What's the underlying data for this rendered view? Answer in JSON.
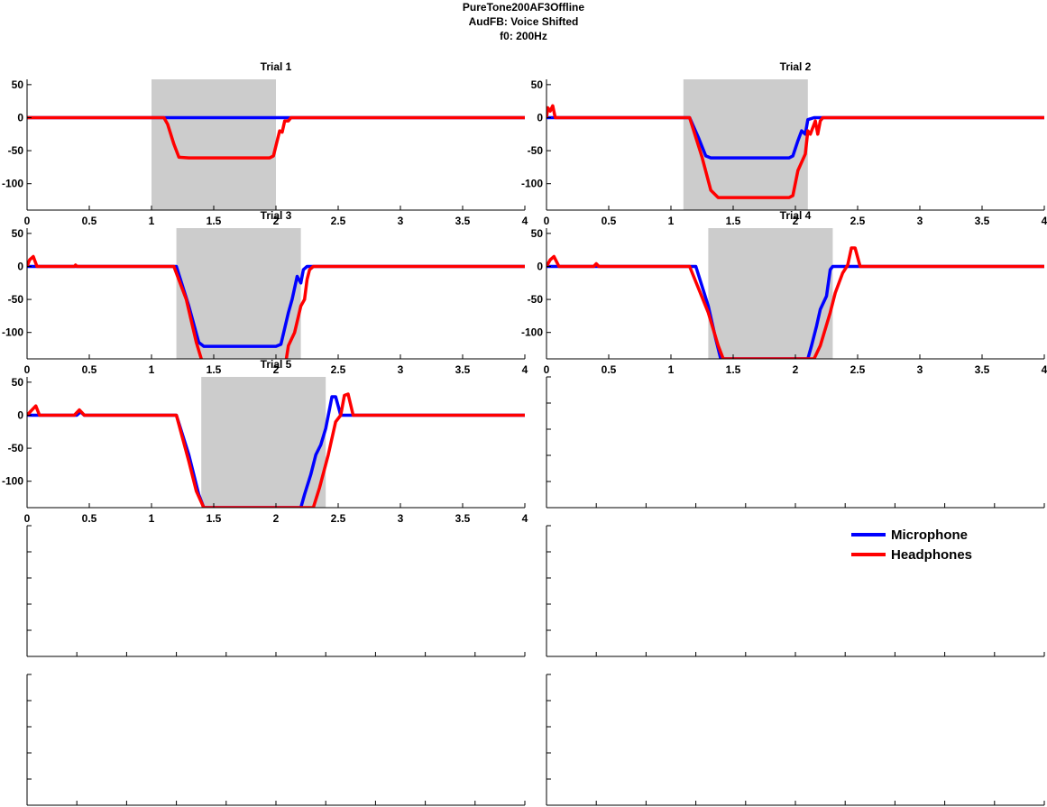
{
  "figure": {
    "title_lines": [
      "PureTone200AF3Offline",
      "AudFB: Voice Shifted",
      "f0: 200Hz"
    ]
  },
  "colors": {
    "microphone": "#0000ff",
    "headphones": "#ff0000",
    "shade": "#cccccc"
  },
  "legend": {
    "placement": "top-right of lower-right empty axes",
    "entries": [
      {
        "label": "Microphone",
        "color": "#0000ff"
      },
      {
        "label": "Headphones",
        "color": "#ff0000"
      }
    ]
  },
  "chart_data": [
    {
      "type": "line",
      "title": "Trial 1",
      "xlim": [
        0,
        4
      ],
      "ylim": [
        -140,
        58
      ],
      "xticks": [
        "0",
        "0.5",
        "1",
        "1.5",
        "2",
        "2.5",
        "3",
        "3.5",
        "4"
      ],
      "yticks": [
        "50",
        "0",
        "-50",
        "-100"
      ],
      "shade": [
        1.0,
        2.0
      ],
      "series": [
        {
          "name": "Microphone",
          "color": "#0000ff",
          "x": [
            0,
            1.0,
            1.1,
            2.0,
            2.1,
            4.0
          ],
          "y": [
            0,
            0,
            0,
            0,
            0,
            0
          ]
        },
        {
          "name": "Headphones",
          "color": "#ff0000",
          "x": [
            0,
            1.1,
            1.13,
            1.18,
            1.22,
            1.3,
            1.95,
            1.98,
            2.03,
            2.05,
            2.07,
            2.1,
            2.12,
            4.0
          ],
          "y": [
            0,
            0,
            -10,
            -40,
            -60,
            -61,
            -61,
            -58,
            -20,
            -22,
            -5,
            -5,
            0,
            0
          ]
        }
      ]
    },
    {
      "type": "line",
      "title": "Trial 2",
      "xlim": [
        0,
        4
      ],
      "ylim": [
        -140,
        58
      ],
      "xticks": [
        "0",
        "0.5",
        "1",
        "1.5",
        "2",
        "2.5",
        "3",
        "3.5",
        "4"
      ],
      "yticks": [
        "50",
        "0",
        "-50",
        "-100"
      ],
      "shade": [
        1.1,
        2.1
      ],
      "series": [
        {
          "name": "Microphone",
          "color": "#0000ff",
          "x": [
            0,
            1.15,
            1.22,
            1.28,
            1.32,
            1.95,
            1.98,
            2.02,
            2.05,
            2.08,
            2.1,
            2.15,
            4.0
          ],
          "y": [
            0,
            0,
            -30,
            -58,
            -61,
            -61,
            -58,
            -35,
            -20,
            -25,
            -3,
            0,
            0
          ]
        },
        {
          "name": "Headphones",
          "color": "#ff0000",
          "x": [
            0,
            0.01,
            0.03,
            0.05,
            0.07,
            1.15,
            1.25,
            1.32,
            1.38,
            1.95,
            1.98,
            2.02,
            2.08,
            2.1,
            2.12,
            2.16,
            2.18,
            2.2,
            2.22,
            4.0
          ],
          "y": [
            0,
            15,
            10,
            18,
            0,
            0,
            -60,
            -110,
            -121,
            -121,
            -118,
            -80,
            -55,
            -20,
            -25,
            -5,
            -25,
            -5,
            0,
            0
          ]
        }
      ]
    },
    {
      "type": "line",
      "title": "Trial 3",
      "xlim": [
        0,
        4
      ],
      "ylim": [
        -140,
        58
      ],
      "xticks": [
        "0",
        "0.5",
        "1",
        "1.5",
        "2",
        "2.5",
        "3",
        "3.5",
        "4"
      ],
      "yticks": [
        "50",
        "0",
        "-50",
        "-100"
      ],
      "shade": [
        1.2,
        2.2
      ],
      "series": [
        {
          "name": "Microphone",
          "color": "#0000ff",
          "x": [
            0,
            1.2,
            1.3,
            1.38,
            1.42,
            2.0,
            2.04,
            2.1,
            2.13,
            2.17,
            2.2,
            2.22,
            2.25,
            4.0
          ],
          "y": [
            0,
            0,
            -60,
            -115,
            -121,
            -121,
            -118,
            -70,
            -50,
            -15,
            -25,
            -5,
            0,
            0
          ]
        },
        {
          "name": "Headphones",
          "color": "#ff0000",
          "x": [
            0,
            0.02,
            0.05,
            0.08,
            0.38,
            0.39,
            0.4,
            1.18,
            1.28,
            1.36,
            1.4,
            1.48,
            2.05,
            2.1,
            2.15,
            2.2,
            2.23,
            2.25,
            2.27,
            2.3,
            4.0
          ],
          "y": [
            0,
            10,
            15,
            0,
            0,
            2,
            0,
            0,
            -50,
            -115,
            -140,
            -180,
            -180,
            -120,
            -100,
            -60,
            -50,
            -20,
            -5,
            0,
            0
          ]
        }
      ]
    },
    {
      "type": "line",
      "title": "Trial 4",
      "xlim": [
        0,
        4
      ],
      "ylim": [
        -140,
        58
      ],
      "xticks": [
        "0",
        "0.5",
        "1",
        "1.5",
        "2",
        "2.5",
        "3",
        "3.5",
        "4"
      ],
      "yticks": [
        "50",
        "0",
        "-50",
        "-100"
      ],
      "shade": [
        1.3,
        2.3
      ],
      "series": [
        {
          "name": "Microphone",
          "color": "#0000ff",
          "x": [
            0,
            1.2,
            1.3,
            1.36,
            1.4,
            2.1,
            2.13,
            2.17,
            2.2,
            2.25,
            2.28,
            2.3,
            2.4,
            4.0
          ],
          "y": [
            0,
            0,
            -60,
            -110,
            -140,
            -140,
            -120,
            -90,
            -65,
            -45,
            -5,
            0,
            0,
            0
          ]
        },
        {
          "name": "Headphones",
          "color": "#ff0000",
          "x": [
            0,
            0.03,
            0.06,
            0.1,
            0.38,
            0.4,
            0.42,
            1.15,
            1.3,
            1.38,
            1.42,
            2.15,
            2.2,
            2.28,
            2.32,
            2.38,
            2.42,
            2.45,
            2.48,
            2.52,
            4.0
          ],
          "y": [
            0,
            10,
            15,
            0,
            0,
            4,
            0,
            0,
            -70,
            -120,
            -140,
            -140,
            -120,
            -70,
            -40,
            -10,
            2,
            28,
            28,
            0,
            0
          ]
        }
      ]
    },
    {
      "type": "line",
      "title": "Trial 5",
      "xlim": [
        0,
        4
      ],
      "ylim": [
        -140,
        58
      ],
      "xticks": [
        "0",
        "0.5",
        "1",
        "1.5",
        "2",
        "2.5",
        "3",
        "3.5",
        "4"
      ],
      "yticks": [
        "50",
        "0",
        "-50",
        "-100"
      ],
      "shade": [
        1.4,
        2.4
      ],
      "series": [
        {
          "name": "Microphone",
          "color": "#0000ff",
          "x": [
            0,
            0.4,
            0.43,
            0.46,
            1.2,
            1.3,
            1.38,
            1.42,
            2.2,
            2.23,
            2.28,
            2.32,
            2.36,
            2.4,
            2.45,
            2.48,
            2.52,
            2.55,
            4.0
          ],
          "y": [
            0,
            0,
            5,
            0,
            0,
            -60,
            -120,
            -140,
            -140,
            -120,
            -90,
            -60,
            -45,
            -20,
            28,
            28,
            0,
            0,
            0
          ]
        },
        {
          "name": "Headphones",
          "color": "#ff0000",
          "x": [
            0,
            0.04,
            0.07,
            0.1,
            0.38,
            0.42,
            0.46,
            1.2,
            1.3,
            1.36,
            1.42,
            2.3,
            2.35,
            2.42,
            2.48,
            2.52,
            2.55,
            2.58,
            2.62,
            2.7,
            4.0
          ],
          "y": [
            0,
            8,
            14,
            0,
            0,
            8,
            0,
            0,
            -70,
            -115,
            -140,
            -140,
            -110,
            -60,
            -10,
            0,
            30,
            32,
            0,
            0,
            0
          ]
        }
      ]
    }
  ]
}
